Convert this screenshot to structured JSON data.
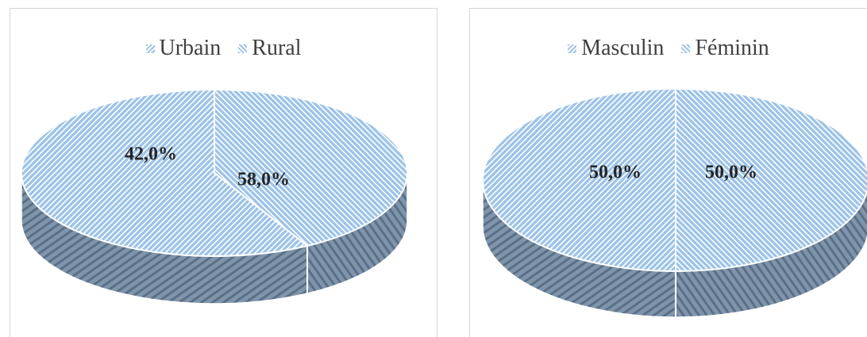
{
  "chart_data": [
    {
      "type": "pie",
      "style": "3d-hatched",
      "categories": [
        "Urbain",
        "Rural"
      ],
      "values": [
        42.0,
        58.0
      ],
      "labels": [
        "42,0%",
        "58,0%"
      ],
      "legend": [
        "Urbain",
        "Rural"
      ],
      "legend_position": "top",
      "colors": {
        "fill": "#9dc3e6",
        "stripe": "#ffffff",
        "side": "#7f95ac",
        "side_dark": "#5b6f86"
      }
    },
    {
      "type": "pie",
      "style": "3d-hatched",
      "categories": [
        "Masculin",
        "Féminin"
      ],
      "values": [
        50.0,
        50.0
      ],
      "labels": [
        "50,0%",
        "50,0%"
      ],
      "legend": [
        "Masculin",
        "Féminin"
      ],
      "legend_position": "top",
      "colors": {
        "fill": "#9dc3e6",
        "stripe": "#ffffff",
        "side": "#7f95ac",
        "side_dark": "#5b6f86"
      }
    }
  ]
}
